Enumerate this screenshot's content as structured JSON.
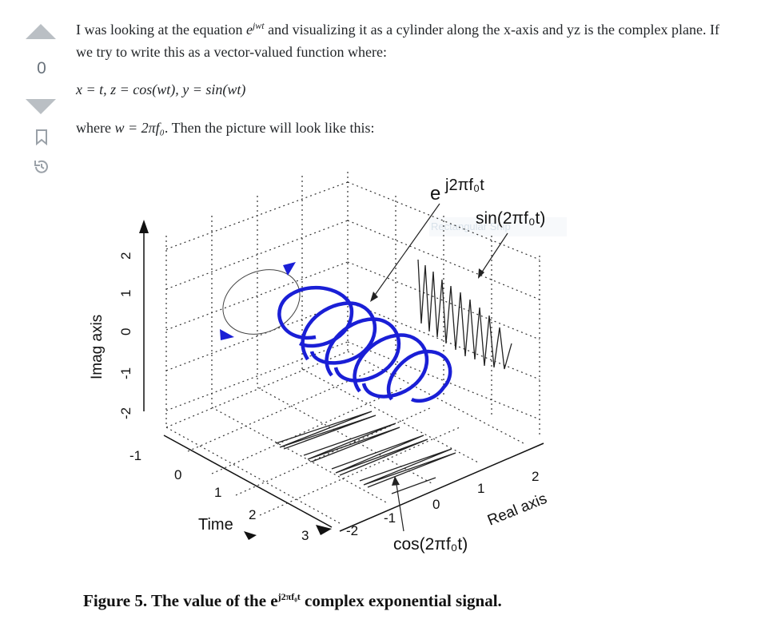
{
  "vote": {
    "count": "0"
  },
  "icons": {
    "upvote": "arrow-up-icon",
    "downvote": "arrow-down-icon",
    "bookmark": "bookmark-icon",
    "history": "history-icon"
  },
  "post": {
    "intro_before": "I was looking at the equation ",
    "intro_eq_base": "e",
    "intro_eq_sup": "jwt",
    "intro_after": " and visualizing it as a cylinder along the x-axis and yz is the complex plane. If we try to write this as a vector-valued function where:",
    "equation": "x = t, z = cos(wt), y = sin(wt)",
    "where_text": "where ",
    "where_eq": "w = 2πf₀",
    "where_after": ". Then the picture will look like this:",
    "snip_overlay": "Rectangular Snip"
  },
  "figure": {
    "label_top_e": "e",
    "label_top_exp": "j2πf₀t",
    "label_sin": "sin(2πf₀t)",
    "label_cos": "cos(2πf₀t)",
    "imag_axis": "Imag axis",
    "real_axis": "Real axis",
    "time_label": "Time",
    "imag_ticks": [
      "2",
      "1",
      "0",
      "-1",
      "-2"
    ],
    "time_ticks": [
      "-1",
      "0",
      "1",
      "2",
      "3"
    ],
    "real_ticks": [
      "-2",
      "-1",
      "0",
      "1",
      "2"
    ]
  },
  "caption": {
    "prefix": "Figure 5. The value of the e",
    "sup": "j2πf₀t",
    "suffix": " complex exponential signal."
  },
  "colors": {
    "accent_blue": "#1a1fd6",
    "vote_gray": "#babfc4"
  }
}
